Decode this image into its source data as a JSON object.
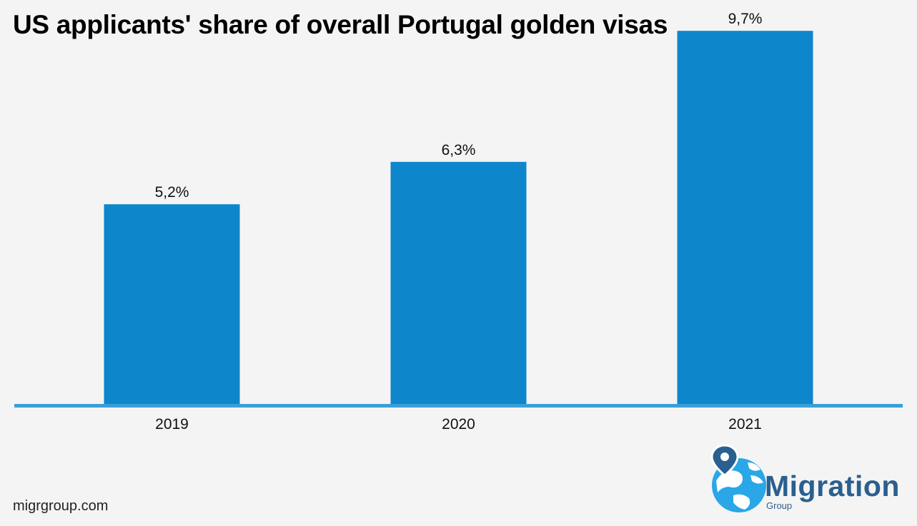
{
  "title": "US applicants' share of overall Portugal golden visas",
  "chart_data": {
    "type": "bar",
    "categories": [
      "2019",
      "2020",
      "2021"
    ],
    "values": [
      5.2,
      6.3,
      9.7
    ],
    "value_labels": [
      "5,2%",
      "6,3%",
      "9,7%"
    ],
    "ylim": [
      0,
      10
    ],
    "grid": false,
    "bar_color": "#0e86cc",
    "axis_color": "#3a9fd6"
  },
  "source": "migrgroup.com",
  "logo": {
    "name": "Migration",
    "sub": "Group",
    "color": "#2a5f8f"
  }
}
